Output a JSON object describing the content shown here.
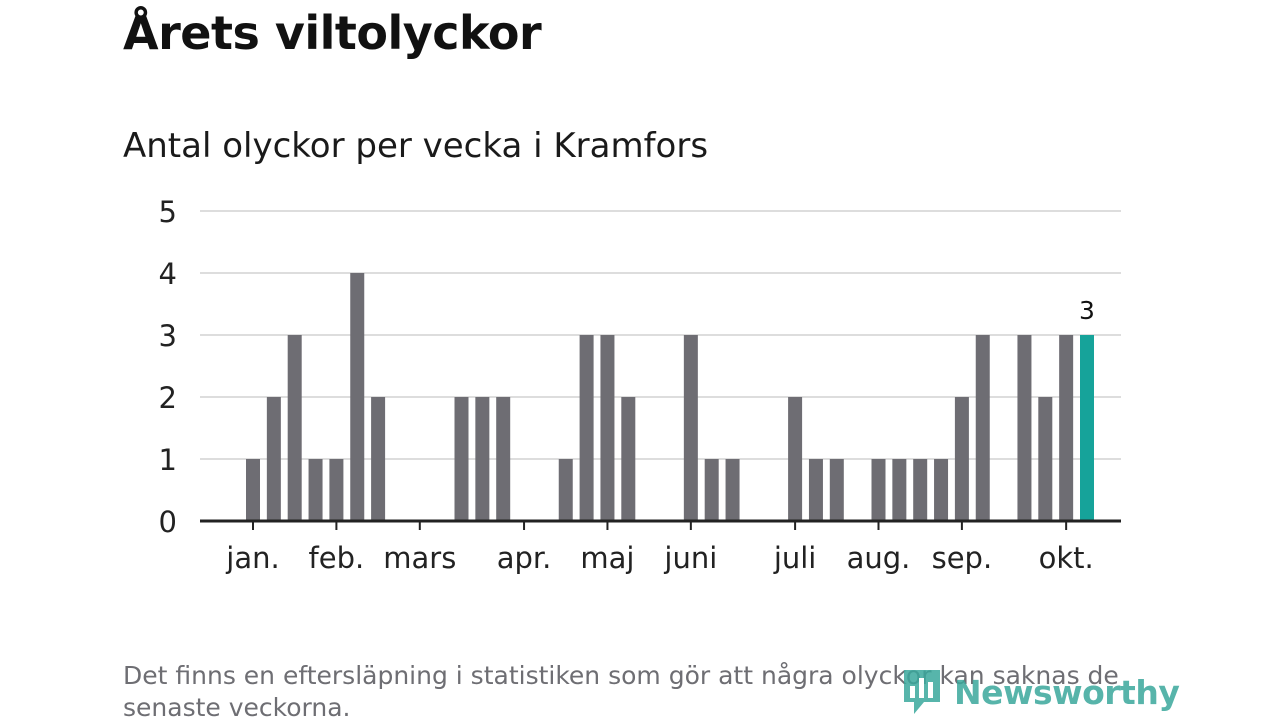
{
  "title": "Årets viltolyckor",
  "subtitle": "Antal olyckor per vecka i Kramfors",
  "footnote": "Det finns en eftersläpning i statistiken som gör att några olyckor kan saknas de senaste veckorna.",
  "logo_text": "Newsworthy",
  "colors": {
    "bar": "#6e6d73",
    "highlight": "#16a39a",
    "grid": "#dddddd",
    "axis": "#222222",
    "logo": "#3aa89c"
  },
  "chart_data": {
    "type": "bar",
    "title": "Antal olyckor per vecka i Kramfors",
    "xlabel": "",
    "ylabel": "",
    "ylim": [
      0,
      5
    ],
    "y_ticks": [
      0,
      1,
      2,
      3,
      4,
      5
    ],
    "weeks": [
      1,
      2,
      3,
      4,
      5,
      6,
      7,
      8,
      9,
      10,
      11,
      12,
      13,
      14,
      15,
      16,
      17,
      18,
      19,
      20,
      21,
      22,
      23,
      24,
      25,
      26,
      27,
      28,
      29,
      30,
      31,
      32,
      33,
      34,
      35,
      36,
      37,
      38,
      39,
      40,
      41
    ],
    "values": [
      1,
      2,
      3,
      1,
      1,
      4,
      2,
      0,
      0,
      0,
      2,
      2,
      2,
      0,
      0,
      1,
      3,
      3,
      2,
      0,
      0,
      3,
      1,
      1,
      0,
      0,
      2,
      1,
      1,
      0,
      1,
      1,
      1,
      1,
      2,
      3,
      0,
      3,
      2,
      3,
      3
    ],
    "highlight_week": 41,
    "highlight_label": "3",
    "month_labels": [
      {
        "label": "jan.",
        "week": 1
      },
      {
        "label": "feb.",
        "week": 5
      },
      {
        "label": "mars",
        "week": 9
      },
      {
        "label": "apr.",
        "week": 14
      },
      {
        "label": "maj",
        "week": 18
      },
      {
        "label": "juni",
        "week": 22
      },
      {
        "label": "juli",
        "week": 27
      },
      {
        "label": "aug.",
        "week": 31
      },
      {
        "label": "sep.",
        "week": 35
      },
      {
        "label": "okt.",
        "week": 40
      }
    ],
    "grid": true,
    "legend": "none"
  }
}
